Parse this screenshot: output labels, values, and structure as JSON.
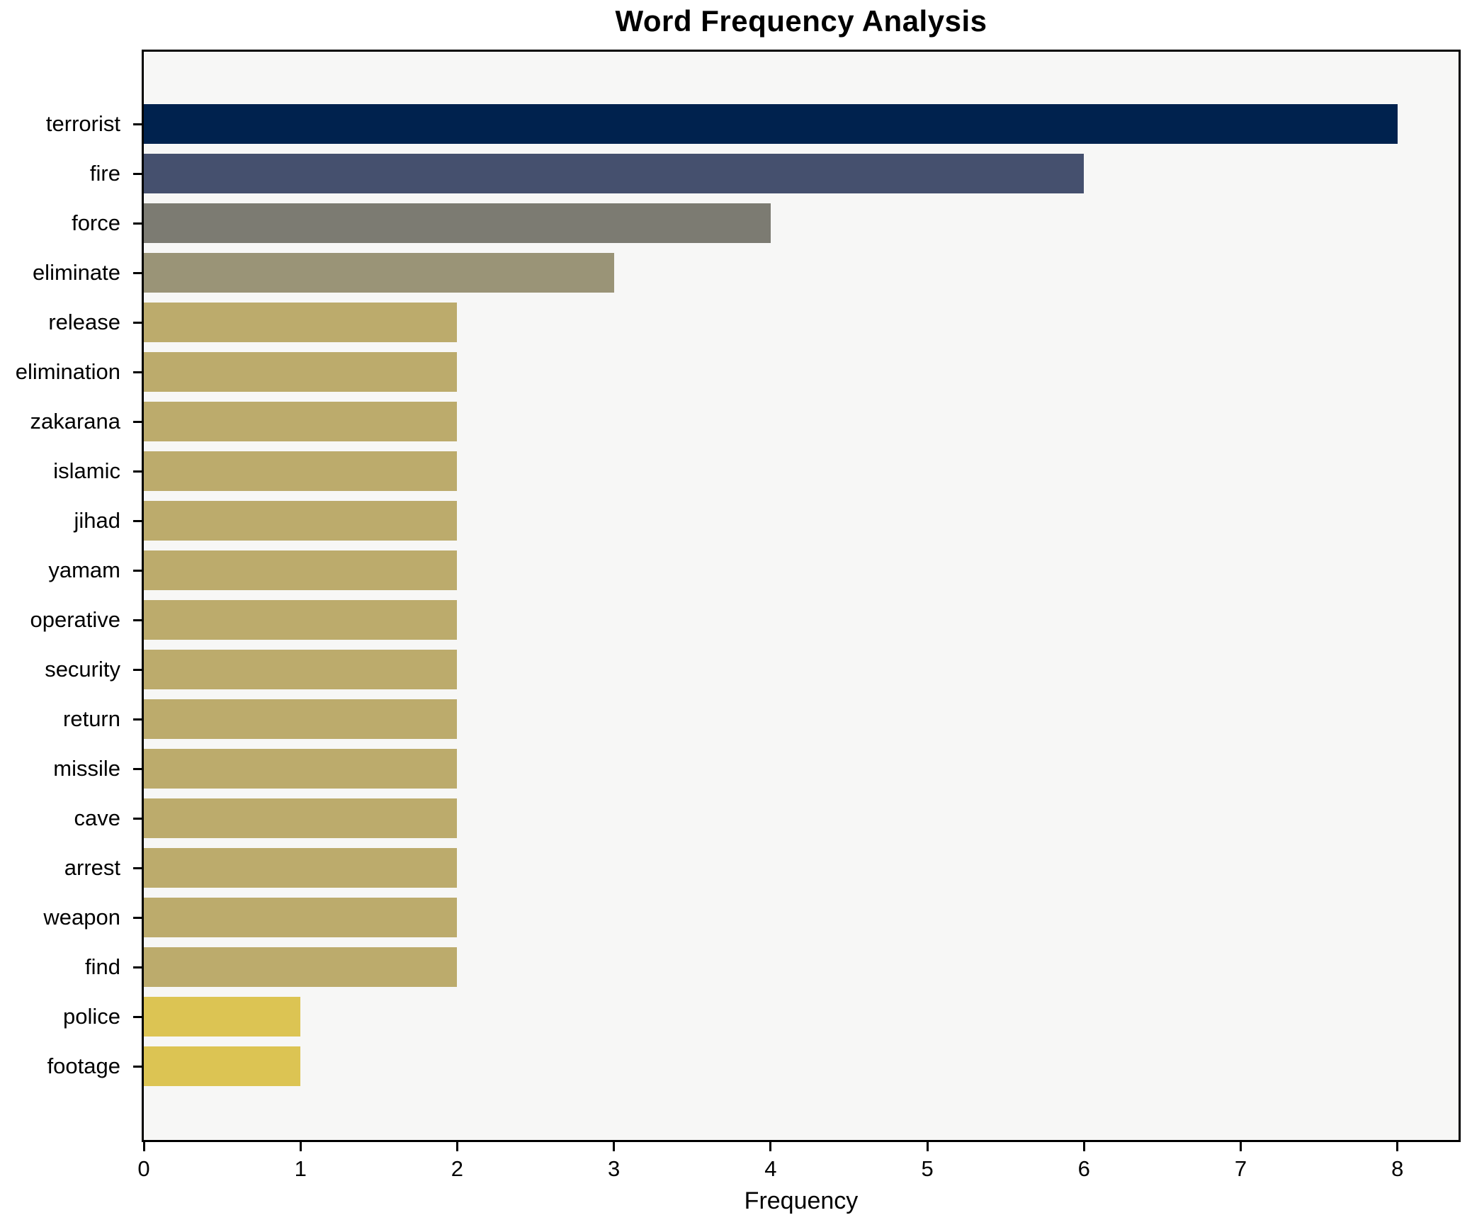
{
  "figure": {
    "title": "Word Frequency Analysis",
    "background_color": "#ffffff",
    "plot_background_color": "#f7f7f6",
    "frame_color": "#000000"
  },
  "chart_data": {
    "type": "bar",
    "orientation": "horizontal",
    "title": "Word Frequency Analysis",
    "xlabel": "Frequency",
    "ylabel": "",
    "categories": [
      "terrorist",
      "fire",
      "force",
      "eliminate",
      "release",
      "elimination",
      "zakarana",
      "islamic",
      "jihad",
      "yamam",
      "operative",
      "security",
      "return",
      "missile",
      "cave",
      "arrest",
      "weapon",
      "find",
      "police",
      "footage"
    ],
    "values": [
      8,
      6,
      4,
      3,
      2,
      2,
      2,
      2,
      2,
      2,
      2,
      2,
      2,
      2,
      2,
      2,
      2,
      2,
      1,
      1
    ],
    "bar_colors": [
      "#00224e",
      "#45506e",
      "#7c7b72",
      "#9a9477",
      "#bcab6c",
      "#bcab6c",
      "#bcab6c",
      "#bcab6c",
      "#bcab6c",
      "#bcab6c",
      "#bcab6c",
      "#bcab6c",
      "#bcab6c",
      "#bcab6c",
      "#bcab6c",
      "#bcab6c",
      "#bcab6c",
      "#bcab6c",
      "#dcc453",
      "#dcc453"
    ],
    "xlim": [
      0,
      8.39
    ],
    "xticks": [
      0,
      1,
      2,
      3,
      4,
      5,
      6,
      7,
      8
    ],
    "grid": false,
    "legend_position": "none"
  }
}
